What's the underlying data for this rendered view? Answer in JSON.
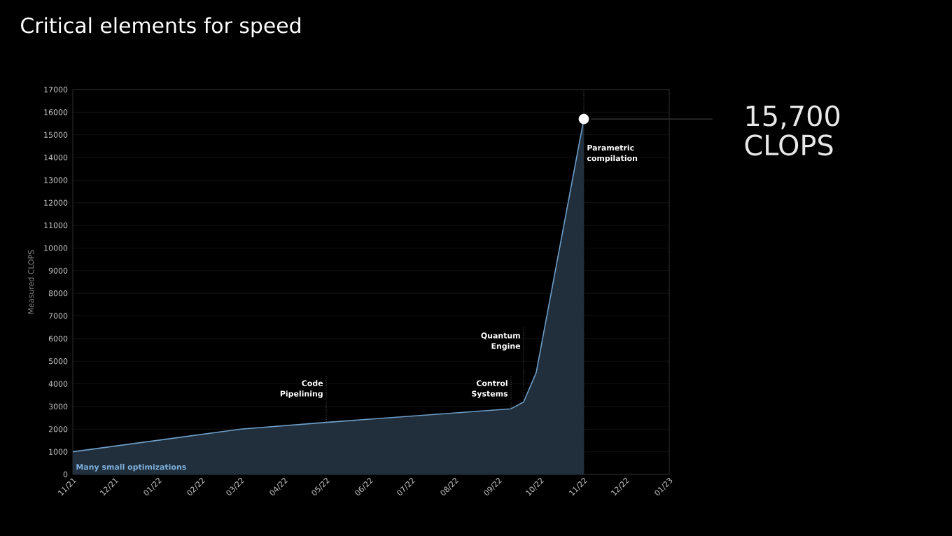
{
  "chart_data": {
    "type": "area",
    "title": "Critical elements for speed",
    "ylabel": "Measured CLOPS",
    "xlim": [
      "2021-11-01",
      "2023-01-01"
    ],
    "xticks": [
      {
        "value": "2021-11-01",
        "label": "11/21"
      },
      {
        "value": "2021-12-01",
        "label": "12/21"
      },
      {
        "value": "2022-01-01",
        "label": "01/22"
      },
      {
        "value": "2022-02-01",
        "label": "02/22"
      },
      {
        "value": "2022-03-01",
        "label": "03/22"
      },
      {
        "value": "2022-04-01",
        "label": "04/22"
      },
      {
        "value": "2022-05-01",
        "label": "05/22"
      },
      {
        "value": "2022-06-01",
        "label": "06/22"
      },
      {
        "value": "2022-07-01",
        "label": "07/22"
      },
      {
        "value": "2022-08-01",
        "label": "08/22"
      },
      {
        "value": "2022-09-01",
        "label": "09/22"
      },
      {
        "value": "2022-10-01",
        "label": "10/22"
      },
      {
        "value": "2022-11-01",
        "label": "11/22"
      },
      {
        "value": "2022-12-01",
        "label": "12/22"
      },
      {
        "value": "2023-01-01",
        "label": "01/23"
      }
    ],
    "ylim": [
      0,
      17000
    ],
    "yticks": [
      0,
      1000,
      2000,
      3000,
      4000,
      5000,
      6000,
      7000,
      8000,
      9000,
      10000,
      11000,
      12000,
      13000,
      14000,
      15000,
      16000,
      17000
    ],
    "grid": "y",
    "series": [
      {
        "color": "#6d9ec8",
        "x": [
          "2021-11-01",
          "2022-03-01",
          "2022-05-01",
          "2022-09-10",
          "2022-09-19",
          "2022-09-28",
          "2022-11-01"
        ],
        "values": [
          1000,
          2000,
          2300,
          2900,
          3200,
          4500,
          15700
        ]
      },
      {
        "type": "scatter",
        "color": "#ffffff",
        "marker": "circle",
        "x": [
          "2022-11-01"
        ],
        "values": [
          15700
        ]
      }
    ],
    "ref_lines": [
      {
        "axis": "x",
        "value": "2022-05-01",
        "label": "Code Pipelining",
        "line_style": "dotted",
        "color": "#8a8a8a"
      },
      {
        "axis": "x",
        "value": "2022-09-10",
        "label": "Control Systems",
        "line_style": "dotted",
        "color": "#8a8a8a"
      },
      {
        "axis": "x",
        "value": "2022-09-19",
        "label": "Quantum Engine",
        "line_style": "dotted",
        "color": "#8a8a8a"
      },
      {
        "axis": "x",
        "value": "2022-11-01",
        "label": "Parametric compilation",
        "line_style": "dotted",
        "color": "#8a8a8a"
      },
      {
        "axis": "y",
        "value": 15700,
        "label": "15,700 CLOPS",
        "line_style": "solid",
        "color": "#3a3a3a"
      }
    ],
    "annotations": [
      "Many small optimizations"
    ]
  }
}
